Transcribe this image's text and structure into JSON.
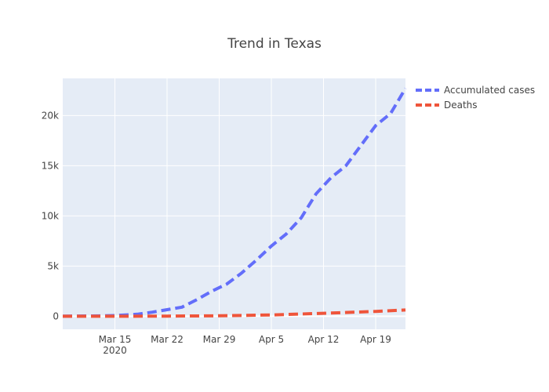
{
  "chart_data": {
    "type": "line",
    "title": "Trend in Texas",
    "xlabel": "",
    "ylabel": "",
    "x_type": "date",
    "xlim": [
      "2020-03-08",
      "2020-04-23"
    ],
    "ylim": [
      -1300,
      23700
    ],
    "x_ticks": [
      {
        "date": "2020-03-15",
        "label": "Mar 15",
        "sublabel": "2020"
      },
      {
        "date": "2020-03-22",
        "label": "Mar 22",
        "sublabel": ""
      },
      {
        "date": "2020-03-29",
        "label": "Mar 29",
        "sublabel": ""
      },
      {
        "date": "2020-04-05",
        "label": "Apr 5",
        "sublabel": ""
      },
      {
        "date": "2020-04-12",
        "label": "Apr 12",
        "sublabel": ""
      },
      {
        "date": "2020-04-19",
        "label": "Apr 19",
        "sublabel": ""
      }
    ],
    "y_ticks": [
      {
        "value": 0,
        "label": "0"
      },
      {
        "value": 5000,
        "label": "5k"
      },
      {
        "value": 10000,
        "label": "10k"
      },
      {
        "value": 15000,
        "label": "15k"
      },
      {
        "value": 20000,
        "label": "20k"
      }
    ],
    "grid": true,
    "legend_position": "top-right, outside plot",
    "background_color": "#e5ecf6",
    "series": [
      {
        "name": "Accumulated cases",
        "color": "#636efa",
        "dash": "dash",
        "points": [
          [
            "2020-03-08",
            10
          ],
          [
            "2020-03-12",
            30
          ],
          [
            "2020-03-15",
            70
          ],
          [
            "2020-03-18",
            200
          ],
          [
            "2020-03-20",
            400
          ],
          [
            "2020-03-22",
            650
          ],
          [
            "2020-03-24",
            900
          ],
          [
            "2020-03-26",
            1650
          ],
          [
            "2020-03-28",
            2500
          ],
          [
            "2020-03-30",
            3200
          ],
          [
            "2020-04-01",
            4300
          ],
          [
            "2020-04-03",
            5600
          ],
          [
            "2020-04-05",
            7000
          ],
          [
            "2020-04-07",
            8200
          ],
          [
            "2020-04-09",
            9800
          ],
          [
            "2020-04-11",
            12200
          ],
          [
            "2020-04-13",
            13800
          ],
          [
            "2020-04-15",
            15000
          ],
          [
            "2020-04-17",
            17000
          ],
          [
            "2020-04-19",
            19000
          ],
          [
            "2020-04-21",
            20200
          ],
          [
            "2020-04-23",
            22700
          ]
        ]
      },
      {
        "name": "Deaths",
        "color": "#ef553b",
        "dash": "dash",
        "points": [
          [
            "2020-03-08",
            0
          ],
          [
            "2020-03-15",
            0
          ],
          [
            "2020-03-22",
            10
          ],
          [
            "2020-03-29",
            40
          ],
          [
            "2020-04-05",
            130
          ],
          [
            "2020-04-12",
            290
          ],
          [
            "2020-04-19",
            480
          ],
          [
            "2020-04-23",
            620
          ]
        ]
      }
    ]
  }
}
